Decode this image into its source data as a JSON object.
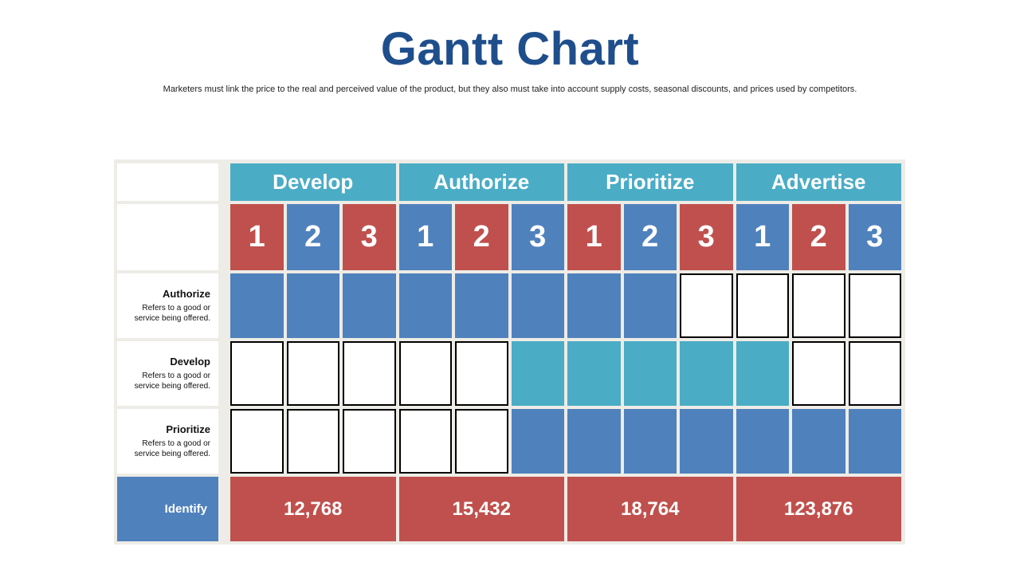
{
  "title": "Gantt Chart",
  "subtitle": "Marketers must link the price to the real and perceived value of the product, but they also must take into account supply costs, seasonal discounts, and prices used by competitors.",
  "colors": {
    "red": "#c0504d",
    "blue": "#4f81bd",
    "teal": "#4bacc6",
    "title": "#1f4e8c"
  },
  "chart_data": {
    "type": "table",
    "phases": [
      "Develop",
      "Authorize",
      "Prioritize",
      "Advertise"
    ],
    "sub_periods": [
      "1",
      "2",
      "3"
    ],
    "tasks": [
      {
        "name": "Authorize",
        "desc": "Refers to a good or service being offered.",
        "filled": [
          1,
          1,
          1,
          1,
          1,
          1,
          1,
          1,
          0,
          0,
          0,
          0
        ],
        "color": "blue"
      },
      {
        "name": "Develop",
        "desc": "Refers to a good or service being offered.",
        "filled": [
          0,
          0,
          0,
          0,
          0,
          1,
          1,
          1,
          1,
          1,
          0,
          0
        ],
        "color": "teal"
      },
      {
        "name": "Prioritize",
        "desc": "Refers to a good or service being offered.",
        "filled": [
          0,
          0,
          0,
          0,
          0,
          1,
          1,
          1,
          1,
          1,
          1,
          1
        ],
        "color": "blue"
      }
    ],
    "totals_label": "Identify",
    "totals": [
      "12,768",
      "15,432",
      "18,764",
      "123,876"
    ]
  }
}
